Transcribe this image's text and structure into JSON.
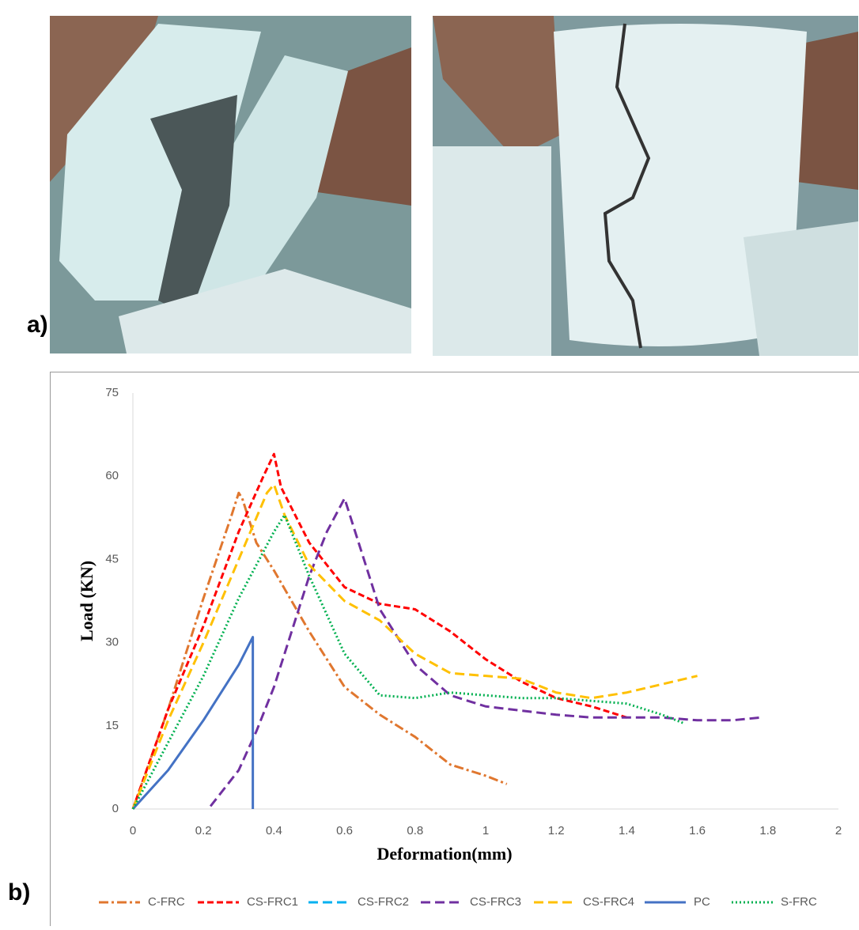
{
  "panel_labels": [
    "a)",
    "b)"
  ],
  "chart_data": {
    "type": "line",
    "xlabel": "Deformation(mm)",
    "ylabel": "Load (KN)",
    "xlim": [
      0,
      2
    ],
    "xticks": [
      0,
      0.2,
      0.4,
      0.6,
      0.8,
      1,
      1.2,
      1.4,
      1.6,
      1.8,
      2
    ],
    "ylim": [
      0,
      75
    ],
    "yticks": [
      0,
      15,
      30,
      45,
      60,
      75
    ],
    "legend": "bottom",
    "series": [
      {
        "name": "C-FRC",
        "color": "#e0772f",
        "style": "dashdot",
        "x": [
          0,
          0.1,
          0.2,
          0.28,
          0.3,
          0.31,
          0.35,
          0.4,
          0.5,
          0.6,
          0.7,
          0.8,
          0.9,
          1.0,
          1.06
        ],
        "values": [
          0,
          18,
          38,
          53,
          57,
          56,
          48,
          43,
          32,
          22,
          17,
          13,
          8,
          6,
          4.5
        ]
      },
      {
        "name": "CS-FRC1",
        "color": "#ff0000",
        "style": "dash",
        "x": [
          0,
          0.1,
          0.2,
          0.3,
          0.37,
          0.4,
          0.42,
          0.5,
          0.6,
          0.7,
          0.8,
          0.9,
          1.0,
          1.1,
          1.2,
          1.3,
          1.4
        ],
        "values": [
          0,
          18,
          33,
          50,
          60,
          64,
          58,
          48,
          40,
          37,
          36,
          32,
          27,
          23,
          20,
          18.5,
          16.5
        ]
      },
      {
        "name": "CS-FRC2",
        "color": "#00b0f0",
        "style": "longdash",
        "x": [],
        "values": []
      },
      {
        "name": "CS-FRC3",
        "color": "#7030a0",
        "style": "longdash",
        "x": [
          0.22,
          0.3,
          0.35,
          0.4,
          0.45,
          0.5,
          0.55,
          0.6,
          0.65,
          0.7,
          0.8,
          0.9,
          1.0,
          1.2,
          1.3,
          1.4,
          1.5,
          1.6,
          1.7,
          1.78
        ],
        "values": [
          0.5,
          7,
          14,
          22,
          32,
          42,
          50,
          56,
          46,
          36,
          26,
          20.5,
          18.5,
          17,
          16.5,
          16.5,
          16.5,
          16,
          16,
          16.5
        ]
      },
      {
        "name": "CS-FRC4",
        "color": "#ffc000",
        "style": "longdash",
        "x": [
          0,
          0.1,
          0.2,
          0.3,
          0.38,
          0.4,
          0.43,
          0.5,
          0.6,
          0.7,
          0.8,
          0.9,
          1.0,
          1.1,
          1.2,
          1.3,
          1.4,
          1.5,
          1.6
        ],
        "values": [
          0,
          16,
          30,
          45,
          57,
          58.5,
          53,
          44,
          37.5,
          34,
          28,
          24.5,
          24,
          23.5,
          21,
          20,
          21,
          22.5,
          24
        ]
      },
      {
        "name": "PC",
        "color": "#4472c4",
        "style": "solid",
        "x": [
          0,
          0.1,
          0.2,
          0.3,
          0.34,
          0.34
        ],
        "values": [
          0,
          7,
          16,
          26,
          31,
          0
        ]
      },
      {
        "name": "S-FRC",
        "color": "#00b050",
        "style": "dot",
        "x": [
          0,
          0.1,
          0.2,
          0.3,
          0.4,
          0.43,
          0.5,
          0.6,
          0.7,
          0.8,
          0.9,
          1.0,
          1.1,
          1.2,
          1.3,
          1.4,
          1.5,
          1.56
        ],
        "values": [
          0,
          12,
          24,
          38,
          50,
          53,
          42,
          28,
          20.5,
          20,
          21,
          20.5,
          20,
          20,
          19.5,
          19,
          17,
          15.5
        ]
      }
    ]
  }
}
